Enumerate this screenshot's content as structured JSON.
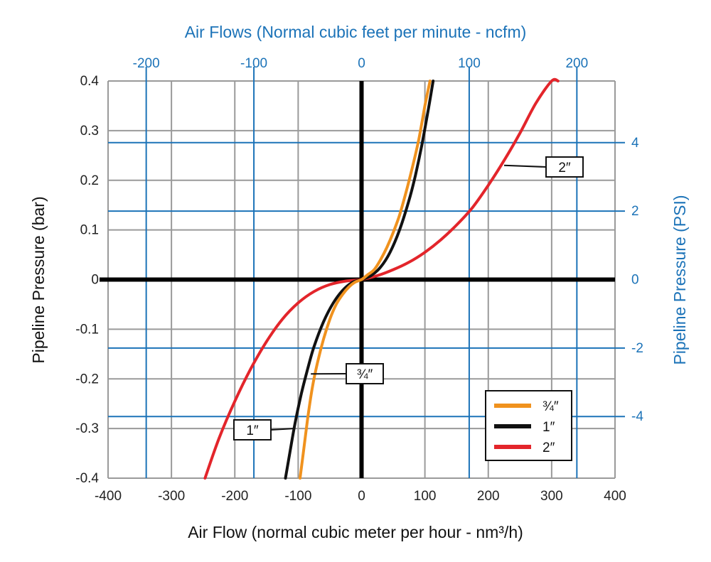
{
  "chart_data": {
    "type": "line",
    "title": "",
    "xlabel": "Air Flow (normal cubic meter per hour - nm³/h)",
    "ylabel": "Pipeline Pressure (bar)",
    "x2label": "Air Flows (Normal cubic feet per minute - ncfm)",
    "y2label": "Pipeline Pressure (PSI)",
    "xlim": [
      -400,
      400
    ],
    "ylim": [
      -0.4,
      0.4
    ],
    "xticks": [
      -400,
      -300,
      -200,
      -100,
      0,
      100,
      200,
      300,
      400
    ],
    "yticks": [
      -0.4,
      -0.3,
      -0.2,
      -0.1,
      0,
      0.1,
      0.2,
      0.3,
      0.4
    ],
    "xtick_labels": [
      "-400",
      "-300",
      "-200",
      "-100",
      "0",
      "100",
      "200",
      "300",
      "400"
    ],
    "ytick_labels": [
      "-0.4",
      "-0.3",
      "-0.2",
      "-0.1",
      "0",
      "0.1",
      "0.2",
      "0.3",
      "0.4"
    ],
    "x2_ticks": [
      -200,
      -100,
      0,
      100,
      200
    ],
    "x2_tick_labels": [
      "-200",
      "-100",
      "0",
      "100",
      "200"
    ],
    "y2_ticks": [
      -4,
      -2,
      0,
      2,
      4
    ],
    "y2_tick_labels": [
      "-4",
      "-2",
      "0",
      "2",
      "4"
    ],
    "grid": true,
    "legend_position": "bottom-right",
    "series": [
      {
        "name": "¾″",
        "color": "#f0921e",
        "x": [
          -97,
          -92,
          -85,
          -78,
          -70,
          -60,
          -50,
          -40,
          -30,
          -20,
          -10,
          0,
          10,
          20,
          30,
          40,
          50,
          60,
          70,
          80,
          90,
          100,
          108
        ],
        "y": [
          -0.4,
          -0.35,
          -0.28,
          -0.22,
          -0.17,
          -0.12,
          -0.08,
          -0.05,
          -0.03,
          -0.015,
          -0.005,
          0,
          0.01,
          0.02,
          0.04,
          0.065,
          0.095,
          0.13,
          0.175,
          0.225,
          0.28,
          0.35,
          0.4
        ]
      },
      {
        "name": "1″",
        "color": "#111111",
        "x": [
          -120,
          -112,
          -105,
          -95,
          -85,
          -75,
          -60,
          -45,
          -30,
          -15,
          0,
          15,
          30,
          45,
          60,
          75,
          85,
          95,
          105,
          113
        ],
        "y": [
          -0.4,
          -0.34,
          -0.29,
          -0.23,
          -0.18,
          -0.135,
          -0.085,
          -0.048,
          -0.022,
          -0.006,
          0,
          0.008,
          0.025,
          0.055,
          0.1,
          0.16,
          0.21,
          0.27,
          0.34,
          0.4
        ]
      },
      {
        "name": "2″",
        "color": "#e3252b",
        "x": [
          -247,
          -225,
          -200,
          -175,
          -150,
          -125,
          -100,
          -75,
          -50,
          -25,
          0,
          25,
          50,
          75,
          100,
          125,
          150,
          175,
          200,
          225,
          250,
          275,
          300,
          310
        ],
        "y": [
          -0.4,
          -0.32,
          -0.245,
          -0.18,
          -0.125,
          -0.08,
          -0.047,
          -0.024,
          -0.01,
          -0.003,
          0,
          0.008,
          0.02,
          0.035,
          0.055,
          0.08,
          0.11,
          0.145,
          0.19,
          0.24,
          0.295,
          0.355,
          0.4,
          0.4
        ]
      }
    ],
    "callouts": [
      {
        "label": "2″",
        "series": "2″",
        "x": 225,
        "y": 0.23
      },
      {
        "label": "¾″",
        "series": "¾″",
        "x": -80,
        "y": -0.19
      },
      {
        "label": "1″",
        "series": "1″",
        "x": -107,
        "y": -0.3
      }
    ]
  },
  "colors": {
    "grid_gray": "#9a9a9a",
    "grid_blue": "#1c73b8",
    "axis_zero": "#000000"
  }
}
